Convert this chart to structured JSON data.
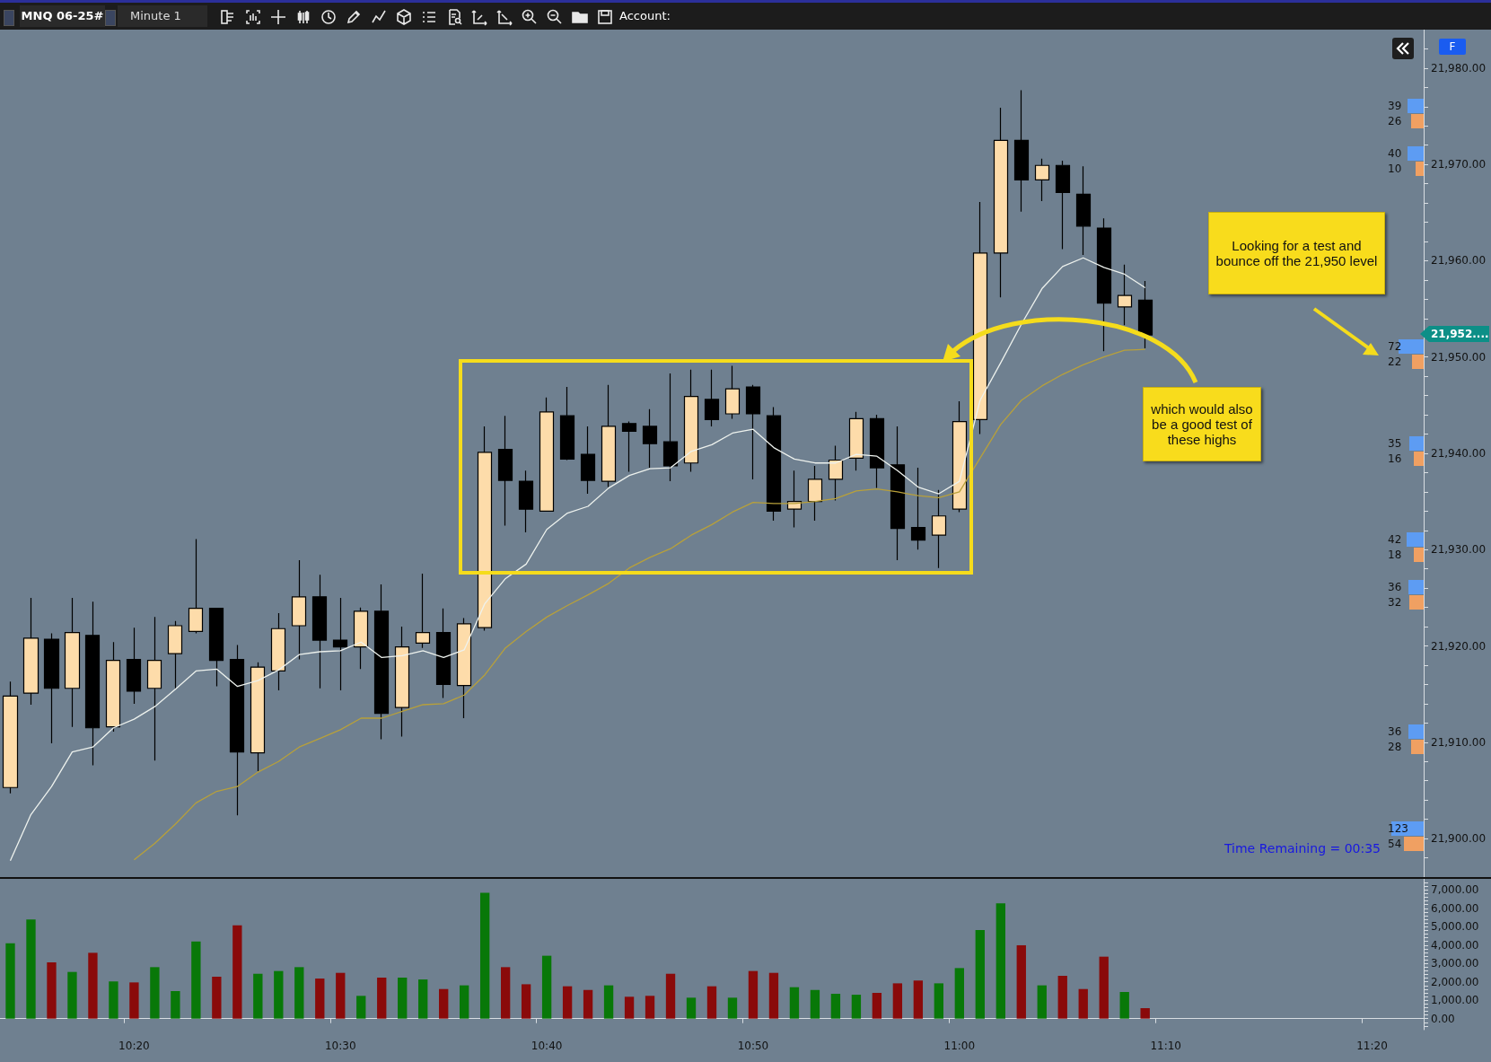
{
  "chart_data": [
    {
      "type": "candlestick",
      "title": "MNQ 06-25#",
      "subtitle": "Minute 1",
      "categories": [
        null,
        null,
        null,
        null,
        null,
        null,
        null,
        null,
        null,
        null,
        null,
        null,
        null,
        null,
        null,
        null,
        null,
        null,
        null,
        null,
        null,
        null,
        null,
        null,
        null,
        null,
        null,
        null,
        null,
        null,
        null,
        null,
        null,
        null,
        null,
        null,
        null,
        null,
        null,
        null,
        null,
        null,
        null,
        null,
        null,
        null,
        null,
        null,
        null,
        null,
        null,
        null,
        null,
        null,
        null,
        null,
        null,
        null,
        null,
        null,
        null,
        null,
        null,
        null,
        null,
        null,
        null,
        null,
        null
      ],
      "ohlc": [
        [
          21905.3,
          21916.3,
          21904.7,
          21914.8
        ],
        [
          21915.1,
          21925.0,
          21913.9,
          21920.8
        ],
        [
          21920.7,
          21921.3,
          21909.9,
          21915.6
        ],
        [
          21915.6,
          21925.0,
          21911.6,
          21921.4
        ],
        [
          21921.1,
          21924.6,
          21907.6,
          21911.5
        ],
        [
          21911.6,
          21920.4,
          21911.1,
          21918.5
        ],
        [
          21918.6,
          21921.9,
          21914.0,
          21915.3
        ],
        [
          21915.6,
          21923.0,
          21908.1,
          21918.5
        ],
        [
          21919.2,
          21922.6,
          21915.6,
          21922.1
        ],
        [
          21921.5,
          21931.1,
          21921.3,
          21923.9
        ],
        [
          21923.9,
          21923.9,
          21915.8,
          21918.5
        ],
        [
          21918.6,
          21920.1,
          21902.4,
          21909.0
        ],
        [
          21908.9,
          21918.3,
          21907.0,
          21917.8
        ],
        [
          21917.4,
          21923.4,
          21915.4,
          21921.8
        ],
        [
          21922.1,
          21928.9,
          21918.6,
          21925.1
        ],
        [
          21925.1,
          21927.4,
          21915.6,
          21920.6
        ],
        [
          21920.6,
          21925.0,
          21915.4,
          21919.9
        ],
        [
          21919.9,
          21924.0,
          21917.6,
          21923.6
        ],
        [
          21923.6,
          21926.4,
          21910.3,
          21913.0
        ],
        [
          21913.6,
          21922.0,
          21910.6,
          21919.9
        ],
        [
          21920.3,
          21927.5,
          21919.8,
          21921.4
        ],
        [
          21921.4,
          21923.9,
          21914.6,
          21916.0
        ],
        [
          21915.9,
          21922.9,
          21912.5,
          21922.3
        ],
        [
          21921.9,
          21942.8,
          21921.6,
          21940.1
        ],
        [
          21940.4,
          21943.9,
          21932.5,
          21937.2
        ],
        [
          21937.1,
          21938.2,
          21931.8,
          21934.2
        ],
        [
          21934.0,
          21945.8,
          21934.0,
          21944.3
        ],
        [
          21943.9,
          21946.9,
          21939.3,
          21939.4
        ],
        [
          21939.9,
          21942.8,
          21935.8,
          21937.2
        ],
        [
          21937.1,
          21947.1,
          21936.5,
          21942.8
        ],
        [
          21943.1,
          21943.3,
          21938.1,
          21942.3
        ],
        [
          21942.8,
          21944.6,
          21938.5,
          21941.0
        ],
        [
          21941.2,
          21948.3,
          21937.1,
          21938.7
        ],
        [
          21939.0,
          21948.7,
          21938.1,
          21945.9
        ],
        [
          21945.6,
          21948.7,
          21942.8,
          21943.5
        ],
        [
          21944.1,
          21949.1,
          21943.6,
          21946.7
        ],
        [
          21946.9,
          21947.1,
          21937.3,
          21944.1
        ],
        [
          21943.9,
          21944.8,
          21933.0,
          21934.0
        ],
        [
          21934.2,
          21938.2,
          21932.3,
          21935.0
        ],
        [
          21935.0,
          21938.7,
          21933.0,
          21937.3
        ],
        [
          21937.3,
          21940.8,
          21935.1,
          21939.3
        ],
        [
          21939.5,
          21944.3,
          21938.2,
          21943.6
        ],
        [
          21943.6,
          21944.0,
          21936.4,
          21938.5
        ],
        [
          21938.8,
          21942.8,
          21928.9,
          21932.2
        ],
        [
          21932.3,
          21938.5,
          21930.0,
          21931.0
        ],
        [
          21931.5,
          21936.2,
          21928.1,
          21933.5
        ],
        [
          21934.2,
          21945.4,
          21933.9,
          21943.3
        ],
        [
          21943.5,
          21966.1,
          21942.0,
          21960.8
        ],
        [
          21960.8,
          21975.9,
          21956.2,
          21972.5
        ],
        [
          21972.5,
          21977.7,
          21965.1,
          21968.4
        ],
        [
          21968.4,
          21970.6,
          21966.2,
          21969.9
        ],
        [
          21969.9,
          21970.4,
          21961.2,
          21967.1
        ],
        [
          21966.9,
          21969.8,
          21960.6,
          21963.6
        ],
        [
          21963.4,
          21964.4,
          21950.6,
          21955.6
        ],
        [
          21955.2,
          21959.6,
          21953.3,
          21956.4
        ],
        [
          21955.9,
          21957.9,
          21950.9,
          21952.3
        ],
        null,
        null,
        null,
        null,
        null,
        null,
        null,
        null,
        null,
        null,
        null,
        null,
        null
      ],
      "series": [
        {
          "type": "line",
          "color": "#eef2ee",
          "values": [
            21897.7,
            21902.5,
            21905.4,
            21909.0,
            21909.5,
            21911.5,
            21912.4,
            21913.7,
            21915.5,
            21917.4,
            21917.6,
            21915.8,
            21916.4,
            21917.5,
            21919.1,
            21919.4,
            21919.5,
            21920.4,
            21918.8,
            21919.0,
            21919.5,
            21918.8,
            21919.6,
            21924.4,
            21927.0,
            21928.5,
            21932.1,
            21933.8,
            21934.5,
            21936.4,
            21937.7,
            21938.4,
            21938.5,
            21940.2,
            21940.9,
            21942.1,
            21942.5,
            21940.6,
            21939.4,
            21939.0,
            21939.0,
            21939.9,
            21939.7,
            21938.2,
            21936.5,
            21935.8,
            21937.1,
            21945.5,
            21949.4,
            21953.4,
            21957.1,
            21959.4,
            21960.3,
            21959.3,
            21958.6,
            21957.2,
            null,
            null,
            null,
            null,
            null,
            null,
            null,
            null,
            null,
            null,
            null,
            null,
            null
          ]
        },
        {
          "type": "line",
          "color": "#b8a03a",
          "values": [
            null,
            null,
            null,
            null,
            null,
            null,
            21897.8,
            21899.5,
            21901.5,
            21903.7,
            21904.9,
            21905.4,
            21906.9,
            21908.0,
            21909.5,
            21910.4,
            21911.3,
            21912.5,
            21912.5,
            21913.2,
            21913.9,
            21914.0,
            21914.9,
            21917.0,
            21919.8,
            21921.5,
            21923.0,
            21924.2,
            21925.3,
            21926.5,
            21928.1,
            21929.2,
            21930.1,
            21931.5,
            21932.6,
            21933.9,
            21934.9,
            21934.8,
            21934.8,
            21935.0,
            21935.3,
            21936.1,
            21936.3,
            21936.0,
            21935.6,
            21935.4,
            21936.0,
            21939.5,
            21943.0,
            21945.5,
            21947.0,
            21948.2,
            21949.2,
            21950.0,
            21950.7,
            21950.8,
            null,
            null,
            null,
            null,
            null,
            null,
            null,
            null,
            null,
            null,
            null,
            null,
            null
          ]
        }
      ],
      "ylim": [
        21896,
        21984
      ],
      "yticks": [
        {
          "value": 21898,
          "label": null
        },
        {
          "value": 21900,
          "label": "21,900.00"
        },
        {
          "value": 21902,
          "label": null
        },
        {
          "value": 21904,
          "label": null
        },
        {
          "value": 21906,
          "label": null
        },
        {
          "value": 21908,
          "label": null
        },
        {
          "value": 21910,
          "label": "21,910.00"
        },
        {
          "value": 21912,
          "label": null
        },
        {
          "value": 21914,
          "label": null
        },
        {
          "value": 21916,
          "label": null
        },
        {
          "value": 21918,
          "label": null
        },
        {
          "value": 21920,
          "label": "21,920.00"
        },
        {
          "value": 21922,
          "label": null
        },
        {
          "value": 21924,
          "label": null
        },
        {
          "value": 21926,
          "label": null
        },
        {
          "value": 21928,
          "label": null
        },
        {
          "value": 21930,
          "label": "21,930.00"
        },
        {
          "value": 21932,
          "label": null
        },
        {
          "value": 21934,
          "label": null
        },
        {
          "value": 21936,
          "label": null
        },
        {
          "value": 21938,
          "label": null
        },
        {
          "value": 21940,
          "label": "21,940.00"
        },
        {
          "value": 21942,
          "label": null
        },
        {
          "value": 21944,
          "label": null
        },
        {
          "value": 21946,
          "label": null
        },
        {
          "value": 21948,
          "label": null
        },
        {
          "value": 21950,
          "label": "21,950.00"
        },
        {
          "value": 21952,
          "label": null
        },
        {
          "value": 21954,
          "label": null
        },
        {
          "value": 21956,
          "label": null
        },
        {
          "value": 21958,
          "label": null
        },
        {
          "value": 21960,
          "label": "21,960.00"
        },
        {
          "value": 21962,
          "label": null
        },
        {
          "value": 21964,
          "label": null
        },
        {
          "value": 21966,
          "label": null
        },
        {
          "value": 21968,
          "label": null
        },
        {
          "value": 21970,
          "label": "21,970.00"
        },
        {
          "value": 21972,
          "label": null
        },
        {
          "value": 21974,
          "label": null
        },
        {
          "value": 21976,
          "label": null
        },
        {
          "value": 21978,
          "label": null
        },
        {
          "value": 21980,
          "label": "21,980.00"
        },
        {
          "value": 21982,
          "label": null
        }
      ],
      "tick_labels": "y",
      "annotations": [
        "Looking for a test and bounce off the 21,950 level",
        "which would also be a good test of these highs",
        "Time Remaining = 00:35",
        "Account:",
        "F",
        "21,952....",
        "39",
        "26",
        "40",
        "10",
        "72",
        "22",
        "35",
        "16",
        "42",
        "18",
        "36",
        "32",
        "36",
        "28",
        "123",
        "54"
      ]
    },
    {
      "type": "bar",
      "categories": [
        null,
        null,
        null,
        null,
        null,
        null,
        "10:20",
        null,
        null,
        null,
        null,
        null,
        null,
        null,
        null,
        null,
        "10:30",
        null,
        null,
        null,
        null,
        null,
        null,
        null,
        null,
        null,
        "10:40",
        null,
        null,
        null,
        null,
        null,
        null,
        null,
        null,
        null,
        "10:50",
        null,
        null,
        null,
        null,
        null,
        null,
        null,
        null,
        null,
        "11:00",
        null,
        null,
        null,
        null,
        null,
        null,
        null,
        null,
        null,
        "11:10",
        null,
        null,
        null,
        null,
        null,
        null,
        null,
        null,
        null,
        "11:20",
        null,
        null
      ],
      "values": [
        4100,
        5390,
        3060,
        2540,
        3580,
        2020,
        1970,
        2800,
        1500,
        4200,
        2280,
        5080,
        2440,
        2590,
        2800,
        2180,
        2490,
        1240,
        2230,
        2230,
        2130,
        1610,
        1810,
        6840,
        2800,
        1870,
        3420,
        1760,
        1560,
        1810,
        1190,
        1240,
        2440,
        1140,
        1760,
        1140,
        2590,
        2490,
        1710,
        1560,
        1350,
        1300,
        1400,
        1920,
        2070,
        1920,
        2750,
        4820,
        6270,
        3990,
        1810,
        2330,
        1610,
        3370,
        1450,
        570,
        null,
        null,
        null,
        null,
        null,
        null,
        null,
        null,
        null,
        null,
        null,
        null,
        null
      ],
      "colors": [
        "#087808",
        "#087808",
        "#8a0a0a",
        "#087808",
        "#8a0a0a",
        "#087808",
        "#8a0a0a",
        "#087808",
        "#087808",
        "#087808",
        "#8a0a0a",
        "#8a0a0a",
        "#087808",
        "#087808",
        "#087808",
        "#8a0a0a",
        "#8a0a0a",
        "#087808",
        "#8a0a0a",
        "#087808",
        "#087808",
        "#8a0a0a",
        "#087808",
        "#087808",
        "#8a0a0a",
        "#8a0a0a",
        "#087808",
        "#8a0a0a",
        "#8a0a0a",
        "#087808",
        "#8a0a0a",
        "#8a0a0a",
        "#8a0a0a",
        "#087808",
        "#8a0a0a",
        "#087808",
        "#8a0a0a",
        "#8a0a0a",
        "#087808",
        "#087808",
        "#087808",
        "#087808",
        "#8a0a0a",
        "#8a0a0a",
        "#8a0a0a",
        "#087808",
        "#087808",
        "#087808",
        "#087808",
        "#8a0a0a",
        "#087808",
        "#8a0a0a",
        "#8a0a0a",
        "#8a0a0a",
        "#087808",
        "#8a0a0a",
        null,
        null,
        null,
        null,
        null,
        null,
        null,
        null,
        null,
        null,
        null,
        null,
        null
      ],
      "ylim": [
        -600,
        7600
      ],
      "yticks": [
        {
          "value": -400,
          "label": null
        },
        {
          "value": -200,
          "label": null
        },
        {
          "value": 0,
          "label": "0.00"
        },
        {
          "value": 200,
          "label": null
        },
        {
          "value": 400,
          "label": null
        },
        {
          "value": 600,
          "label": null
        },
        {
          "value": 800,
          "label": null
        },
        {
          "value": 1000,
          "label": "1,000.00"
        },
        {
          "value": 1200,
          "label": null
        },
        {
          "value": 1400,
          "label": null
        },
        {
          "value": 1600,
          "label": null
        },
        {
          "value": 1800,
          "label": null
        },
        {
          "value": 2000,
          "label": "2,000.00"
        },
        {
          "value": 2200,
          "label": null
        },
        {
          "value": 2400,
          "label": null
        },
        {
          "value": 2600,
          "label": null
        },
        {
          "value": 2800,
          "label": null
        },
        {
          "value": 3000,
          "label": "3,000.00"
        },
        {
          "value": 3200,
          "label": null
        },
        {
          "value": 3400,
          "label": null
        },
        {
          "value": 3600,
          "label": null
        },
        {
          "value": 3800,
          "label": null
        },
        {
          "value": 4000,
          "label": "4,000.00"
        },
        {
          "value": 4200,
          "label": null
        },
        {
          "value": 4400,
          "label": null
        },
        {
          "value": 4600,
          "label": null
        },
        {
          "value": 4800,
          "label": null
        },
        {
          "value": 5000,
          "label": "5,000.00"
        },
        {
          "value": 5200,
          "label": null
        },
        {
          "value": 5400,
          "label": null
        },
        {
          "value": 5600,
          "label": null
        },
        {
          "value": 5800,
          "label": null
        },
        {
          "value": 6000,
          "label": "6,000.00"
        },
        {
          "value": 6200,
          "label": null
        },
        {
          "value": 6400,
          "label": null
        },
        {
          "value": 6600,
          "label": null
        },
        {
          "value": 6800,
          "label": null
        },
        {
          "value": 7000,
          "label": "7,000.00"
        },
        {
          "value": 7200,
          "label": null
        },
        {
          "value": 7400,
          "label": null
        }
      ]
    }
  ]
}
